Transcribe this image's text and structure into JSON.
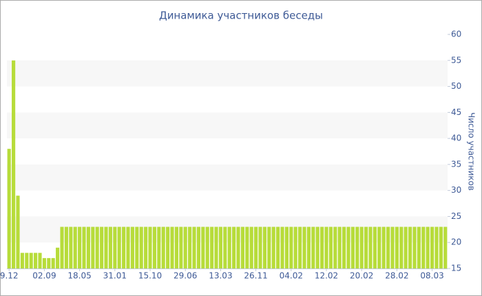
{
  "chart_data": {
    "type": "bar",
    "title": "Динамика участников беседы",
    "y_axis_label": "Число участников",
    "categories": [
      "9.12",
      null,
      null,
      null,
      null,
      null,
      null,
      null,
      "02.09",
      null,
      null,
      null,
      null,
      null,
      null,
      null,
      "18.05",
      null,
      null,
      null,
      null,
      null,
      null,
      null,
      "31.01",
      null,
      null,
      null,
      null,
      null,
      null,
      null,
      "15.10",
      null,
      null,
      null,
      null,
      null,
      null,
      null,
      "29.06",
      null,
      null,
      null,
      null,
      null,
      null,
      null,
      "13.03",
      null,
      null,
      null,
      null,
      null,
      null,
      null,
      "26.11",
      null,
      null,
      null,
      null,
      null,
      null,
      null,
      "04.02",
      null,
      null,
      null,
      null,
      null,
      null,
      null,
      "12.02",
      null,
      null,
      null,
      null,
      null,
      null,
      null,
      "20.02",
      null,
      null,
      null,
      null,
      null,
      null,
      null,
      "28.02",
      null,
      null,
      null,
      null,
      null,
      null,
      null,
      "08.03",
      null,
      null,
      null
    ],
    "values": [
      38,
      55,
      29,
      18,
      18,
      18,
      18,
      18,
      17,
      17,
      17,
      19,
      23,
      23,
      23,
      23,
      23,
      23,
      23,
      23,
      23,
      23,
      23,
      23,
      23,
      23,
      23,
      23,
      23,
      23,
      23,
      23,
      23,
      23,
      23,
      23,
      23,
      23,
      23,
      23,
      23,
      23,
      23,
      23,
      23,
      23,
      23,
      23,
      23,
      23,
      23,
      23,
      23,
      23,
      23,
      23,
      23,
      23,
      23,
      23,
      23,
      23,
      23,
      23,
      23,
      23,
      23,
      23,
      23,
      23,
      23,
      23,
      23,
      23,
      23,
      23,
      23,
      23,
      23,
      23,
      23,
      23,
      23,
      23,
      23,
      23,
      23,
      23,
      23,
      23,
      23,
      23,
      23,
      23,
      23,
      23,
      23,
      23,
      23,
      23
    ],
    "color": "#b7dc3a",
    "ylim": [
      15,
      60
    ],
    "yticks": [
      15,
      20,
      25,
      30,
      35,
      40,
      45,
      50,
      55,
      60
    ],
    "y_axis_side": "right",
    "grid": "bands"
  }
}
